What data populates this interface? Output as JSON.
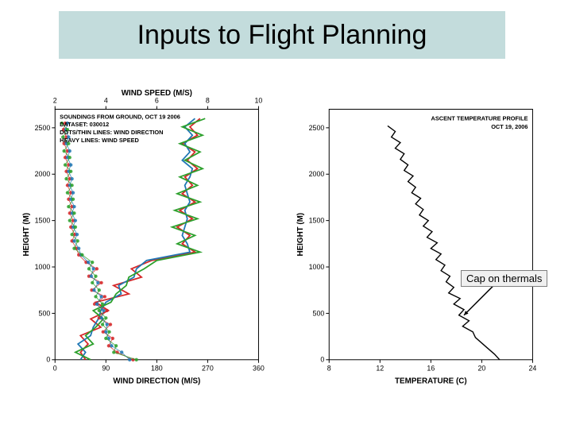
{
  "title": {
    "text": "Inputs to Flight Planning",
    "background": "#c3dcdc",
    "fontsize": 34,
    "color": "#000000"
  },
  "left_chart": {
    "type": "line",
    "top_axis": {
      "label": "WIND SPEED (M/S)",
      "ticks": [
        2,
        4,
        6,
        8,
        10
      ],
      "lim": [
        2,
        10
      ]
    },
    "bottom_axis": {
      "label": "WIND DIRECTION (M/S)",
      "ticks": [
        0,
        90,
        180,
        270,
        360
      ],
      "lim": [
        0,
        360
      ]
    },
    "y_axis": {
      "label": "HEIGHT (M)",
      "ticks": [
        0,
        500,
        1000,
        1500,
        2000,
        2500
      ],
      "lim": [
        0,
        2700
      ]
    },
    "legend_lines": [
      "SOUNDINGS FROM GROUND, OCT 19 2006",
      "DATASET: 030012",
      "DOTS/THIN LINES: WIND DIRECTION",
      "HEAVY LINES: WIND SPEED"
    ],
    "colors": {
      "series1": "#d62728",
      "series2": "#1f77b4",
      "series3": "#2ca02c",
      "frame": "#000000",
      "bg": "#ffffff"
    },
    "line_width_heavy": 1.8,
    "line_width_thin": 0.9,
    "marker_size": 2.2,
    "wind_speed_series": {
      "red": [
        [
          3.2,
          0
        ],
        [
          3.0,
          80
        ],
        [
          3.3,
          170
        ],
        [
          3.0,
          260
        ],
        [
          3.8,
          350
        ],
        [
          3.4,
          440
        ],
        [
          4.1,
          530
        ],
        [
          3.6,
          620
        ],
        [
          4.9,
          710
        ],
        [
          4.3,
          800
        ],
        [
          5.4,
          890
        ],
        [
          5.0,
          980
        ],
        [
          5.8,
          1070
        ],
        [
          7.5,
          1160
        ],
        [
          7.0,
          1250
        ],
        [
          7.3,
          1340
        ],
        [
          6.8,
          1430
        ],
        [
          7.4,
          1520
        ],
        [
          6.9,
          1610
        ],
        [
          7.5,
          1700
        ],
        [
          7.0,
          1790
        ],
        [
          7.4,
          1880
        ],
        [
          7.1,
          1970
        ],
        [
          7.6,
          2060
        ],
        [
          7.2,
          2150
        ],
        [
          7.5,
          2240
        ],
        [
          7.0,
          2330
        ],
        [
          7.6,
          2420
        ],
        [
          7.3,
          2510
        ],
        [
          7.7,
          2600
        ]
      ],
      "blue": [
        [
          3.0,
          0
        ],
        [
          3.2,
          80
        ],
        [
          2.9,
          170
        ],
        [
          3.4,
          260
        ],
        [
          3.5,
          350
        ],
        [
          3.7,
          440
        ],
        [
          3.8,
          530
        ],
        [
          4.0,
          620
        ],
        [
          4.6,
          710
        ],
        [
          4.5,
          800
        ],
        [
          5.1,
          890
        ],
        [
          5.2,
          980
        ],
        [
          5.6,
          1070
        ],
        [
          7.3,
          1160
        ],
        [
          7.2,
          1250
        ],
        [
          7.0,
          1340
        ],
        [
          7.1,
          1430
        ],
        [
          7.2,
          1520
        ],
        [
          7.1,
          1610
        ],
        [
          7.3,
          1700
        ],
        [
          7.2,
          1790
        ],
        [
          7.1,
          1880
        ],
        [
          7.3,
          1970
        ],
        [
          7.4,
          2060
        ],
        [
          7.0,
          2150
        ],
        [
          7.3,
          2240
        ],
        [
          7.1,
          2330
        ],
        [
          7.4,
          2420
        ],
        [
          7.1,
          2510
        ],
        [
          7.5,
          2600
        ]
      ],
      "green": [
        [
          3.4,
          0
        ],
        [
          2.8,
          80
        ],
        [
          3.5,
          170
        ],
        [
          3.2,
          260
        ],
        [
          3.6,
          350
        ],
        [
          3.9,
          440
        ],
        [
          3.5,
          530
        ],
        [
          4.2,
          620
        ],
        [
          4.4,
          710
        ],
        [
          4.8,
          800
        ],
        [
          4.9,
          890
        ],
        [
          5.5,
          980
        ],
        [
          6.0,
          1070
        ],
        [
          7.7,
          1160
        ],
        [
          6.8,
          1250
        ],
        [
          7.5,
          1340
        ],
        [
          6.6,
          1430
        ],
        [
          7.6,
          1520
        ],
        [
          6.7,
          1610
        ],
        [
          7.7,
          1700
        ],
        [
          6.8,
          1790
        ],
        [
          7.6,
          1880
        ],
        [
          6.9,
          1970
        ],
        [
          7.8,
          2060
        ],
        [
          7.1,
          2150
        ],
        [
          7.7,
          2240
        ],
        [
          6.9,
          2330
        ],
        [
          7.8,
          2420
        ],
        [
          7.0,
          2510
        ],
        [
          7.9,
          2600
        ]
      ]
    },
    "wind_dir_series": {
      "red": [
        [
          138,
          0
        ],
        [
          110,
          80
        ],
        [
          95,
          150
        ],
        [
          102,
          230
        ],
        [
          85,
          300
        ],
        [
          98,
          380
        ],
        [
          78,
          450
        ],
        [
          92,
          530
        ],
        [
          70,
          600
        ],
        [
          88,
          680
        ],
        [
          65,
          750
        ],
        [
          82,
          830
        ],
        [
          60,
          900
        ],
        [
          74,
          980
        ],
        [
          55,
          1050
        ],
        [
          42,
          1130
        ],
        [
          38,
          1200
        ],
        [
          30,
          1280
        ],
        [
          35,
          1350
        ],
        [
          28,
          1430
        ],
        [
          32,
          1500
        ],
        [
          26,
          1580
        ],
        [
          30,
          1650
        ],
        [
          24,
          1730
        ],
        [
          28,
          1800
        ],
        [
          22,
          1880
        ],
        [
          26,
          1950
        ],
        [
          20,
          2030
        ],
        [
          24,
          2100
        ],
        [
          18,
          2180
        ],
        [
          22,
          2250
        ],
        [
          16,
          2330
        ],
        [
          20,
          2400
        ],
        [
          15,
          2480
        ],
        [
          18,
          2550
        ]
      ],
      "blue": [
        [
          132,
          0
        ],
        [
          118,
          80
        ],
        [
          100,
          150
        ],
        [
          95,
          230
        ],
        [
          90,
          300
        ],
        [
          92,
          380
        ],
        [
          82,
          450
        ],
        [
          86,
          530
        ],
        [
          74,
          600
        ],
        [
          82,
          680
        ],
        [
          69,
          750
        ],
        [
          76,
          830
        ],
        [
          64,
          900
        ],
        [
          68,
          980
        ],
        [
          59,
          1050
        ],
        [
          46,
          1130
        ],
        [
          42,
          1200
        ],
        [
          34,
          1280
        ],
        [
          39,
          1350
        ],
        [
          32,
          1430
        ],
        [
          36,
          1500
        ],
        [
          30,
          1580
        ],
        [
          34,
          1650
        ],
        [
          28,
          1730
        ],
        [
          32,
          1800
        ],
        [
          26,
          1880
        ],
        [
          30,
          1950
        ],
        [
          24,
          2030
        ],
        [
          28,
          2100
        ],
        [
          22,
          2180
        ],
        [
          26,
          2250
        ],
        [
          20,
          2330
        ],
        [
          24,
          2400
        ],
        [
          19,
          2480
        ],
        [
          22,
          2550
        ]
      ],
      "green": [
        [
          144,
          0
        ],
        [
          104,
          80
        ],
        [
          108,
          150
        ],
        [
          90,
          230
        ],
        [
          96,
          300
        ],
        [
          84,
          380
        ],
        [
          90,
          450
        ],
        [
          78,
          530
        ],
        [
          84,
          600
        ],
        [
          72,
          680
        ],
        [
          78,
          750
        ],
        [
          66,
          830
        ],
        [
          72,
          900
        ],
        [
          60,
          980
        ],
        [
          66,
          1050
        ],
        [
          48,
          1130
        ],
        [
          34,
          1200
        ],
        [
          40,
          1280
        ],
        [
          30,
          1350
        ],
        [
          36,
          1430
        ],
        [
          26,
          1500
        ],
        [
          34,
          1580
        ],
        [
          24,
          1650
        ],
        [
          32,
          1730
        ],
        [
          22,
          1800
        ],
        [
          30,
          1880
        ],
        [
          20,
          1950
        ],
        [
          28,
          2030
        ],
        [
          18,
          2100
        ],
        [
          26,
          2180
        ],
        [
          16,
          2250
        ],
        [
          24,
          2330
        ],
        [
          14,
          2400
        ],
        [
          22,
          2480
        ],
        [
          12,
          2550
        ]
      ]
    }
  },
  "right_chart": {
    "type": "line",
    "x_axis": {
      "label": "TEMPERATURE (C)",
      "ticks": [
        8,
        12,
        16,
        20,
        24
      ],
      "lim": [
        8,
        24
      ]
    },
    "y_axis": {
      "label": "HEIGHT (M)",
      "ticks": [
        0,
        500,
        1000,
        1500,
        2000,
        2500
      ],
      "lim": [
        0,
        2700
      ]
    },
    "title_lines": [
      "ASCENT TEMPERATURE PROFILE",
      "OCT 19, 2006"
    ],
    "colors": {
      "line": "#000000",
      "frame": "#000000",
      "bg": "#ffffff"
    },
    "line_width": 1.4,
    "data": [
      [
        21.4,
        0
      ],
      [
        21.0,
        60
      ],
      [
        20.5,
        120
      ],
      [
        20.0,
        180
      ],
      [
        19.5,
        240
      ],
      [
        19.3,
        300
      ],
      [
        18.5,
        360
      ],
      [
        19.0,
        420
      ],
      [
        18.2,
        480
      ],
      [
        18.6,
        540
      ],
      [
        17.8,
        600
      ],
      [
        18.3,
        660
      ],
      [
        17.4,
        720
      ],
      [
        17.8,
        780
      ],
      [
        17.2,
        840
      ],
      [
        17.5,
        900
      ],
      [
        16.8,
        960
      ],
      [
        17.1,
        1020
      ],
      [
        16.4,
        1080
      ],
      [
        16.8,
        1140
      ],
      [
        16.0,
        1200
      ],
      [
        16.5,
        1260
      ],
      [
        15.7,
        1320
      ],
      [
        16.1,
        1380
      ],
      [
        15.4,
        1440
      ],
      [
        15.8,
        1500
      ],
      [
        15.1,
        1560
      ],
      [
        15.4,
        1620
      ],
      [
        14.8,
        1680
      ],
      [
        15.2,
        1740
      ],
      [
        14.5,
        1800
      ],
      [
        14.8,
        1860
      ],
      [
        14.2,
        1920
      ],
      [
        14.6,
        1980
      ],
      [
        13.9,
        2040
      ],
      [
        14.2,
        2100
      ],
      [
        13.6,
        2160
      ],
      [
        13.9,
        2220
      ],
      [
        13.2,
        2280
      ],
      [
        13.6,
        2340
      ],
      [
        12.9,
        2400
      ],
      [
        13.2,
        2460
      ],
      [
        12.6,
        2520
      ]
    ]
  },
  "callout": {
    "text": "Cap on thermals",
    "background": "#f0f0f0",
    "border": "#7f7f7f",
    "fontsize": 13,
    "arrow_color": "#000000"
  }
}
